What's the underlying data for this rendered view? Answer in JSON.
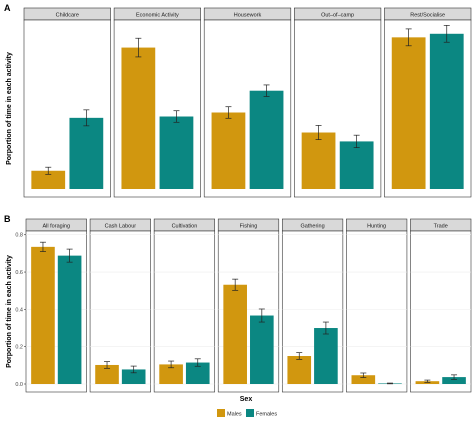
{
  "colors": {
    "males": "#d1970f",
    "females": "#0b8782",
    "strip": "#d9d9d9",
    "panel_border": "#333333",
    "grid": "#eeeeee"
  },
  "chart_data": [
    {
      "panel_tag": "A",
      "type": "bar",
      "facets": [
        "Childcare",
        "Economic Activity",
        "Housework",
        "Out–of–camp",
        "Rest/Socialise"
      ],
      "ylabel": "Porportion of time in each activity",
      "ylim": [
        0,
        0.38
      ],
      "yticks": [],
      "series": [
        {
          "name": "Males",
          "values": [
            0.041,
            0.318,
            0.172,
            0.127,
            0.341
          ],
          "errors": [
            0.008,
            0.021,
            0.013,
            0.016,
            0.019
          ]
        },
        {
          "name": "Females",
          "values": [
            0.16,
            0.163,
            0.221,
            0.107,
            0.349
          ],
          "errors": [
            0.018,
            0.013,
            0.013,
            0.014,
            0.019
          ]
        }
      ]
    },
    {
      "panel_tag": "B",
      "type": "bar",
      "facets": [
        "All foraging",
        "Cash Labour",
        "Cultivation",
        "Fishing",
        "Gathering",
        "Hunting",
        "Trade"
      ],
      "ylabel": "Porportion of time in each activity",
      "ylim": [
        0,
        0.82
      ],
      "yticks": [
        "0.0",
        "0.2",
        "0.4",
        "0.6",
        "0.8"
      ],
      "series": [
        {
          "name": "Males",
          "values": [
            0.735,
            0.102,
            0.105,
            0.532,
            0.15,
            0.047,
            0.015
          ],
          "errors": [
            0.025,
            0.018,
            0.018,
            0.03,
            0.018,
            0.012,
            0.006
          ]
        },
        {
          "name": "Females",
          "values": [
            0.688,
            0.078,
            0.115,
            0.367,
            0.3,
            0.003,
            0.037
          ],
          "errors": [
            0.035,
            0.018,
            0.02,
            0.035,
            0.032,
            0.002,
            0.012
          ]
        }
      ]
    }
  ],
  "legend": {
    "title": "Sex",
    "items": [
      "Males",
      "Females"
    ]
  }
}
